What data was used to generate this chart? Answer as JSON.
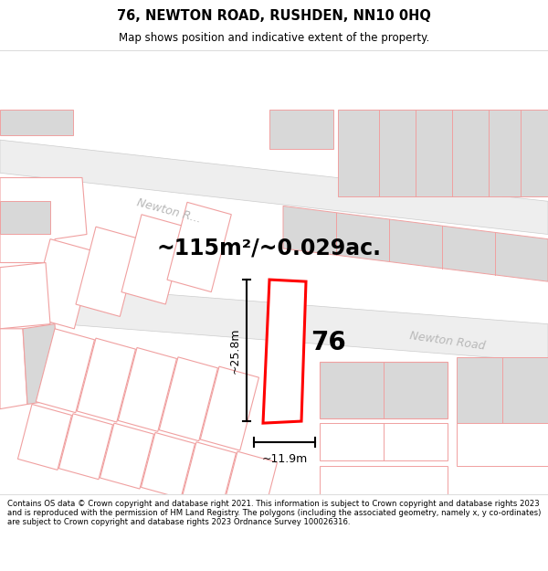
{
  "title": "76, NEWTON ROAD, RUSHDEN, NN10 0HQ",
  "subtitle": "Map shows position and indicative extent of the property.",
  "footer": "Contains OS data © Crown copyright and database right 2021. This information is subject to Crown copyright and database rights 2023 and is reproduced with the permission of HM Land Registry. The polygons (including the associated geometry, namely x, y co-ordinates) are subject to Crown copyright and database rights 2023 Ordnance Survey 100026316.",
  "area_text": "~115m²/~0.029ac.",
  "property_number": "76",
  "width_label": "~11.9m",
  "height_label": "~25.8m",
  "road_label_newton_place": "Newton R...",
  "road_label_newton_road": "Newton Road",
  "plot_color": "#ff0000",
  "outline_color": "#f5a0a0",
  "gray_block_color": "#d8d8d8",
  "road_label_color": "#b0b0b0"
}
